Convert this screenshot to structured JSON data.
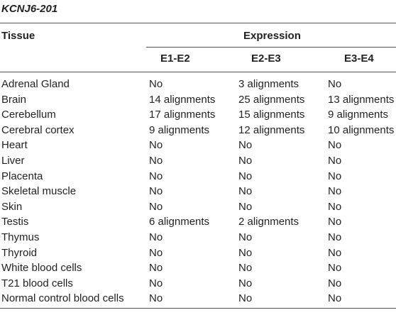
{
  "table": {
    "title": "KCNJ6-201",
    "header_tissue": "Tissue",
    "header_expression": "Expression",
    "subheaders": [
      "E1-E2",
      "E2-E3",
      "E3-E4"
    ],
    "rows": [
      {
        "tissue": "Adrenal Gland",
        "e1e2": "No",
        "e2e3": "3 alignments",
        "e3e4": "No"
      },
      {
        "tissue": "Brain",
        "e1e2": "14 alignments",
        "e2e3": "25 alignments",
        "e3e4": "13 alignments"
      },
      {
        "tissue": "Cerebellum",
        "e1e2": "17 alignments",
        "e2e3": "15 alignments",
        "e3e4": "9 alignments"
      },
      {
        "tissue": "Cerebral cortex",
        "e1e2": "9 alignments",
        "e2e3": "12 alignments",
        "e3e4": "10 alignments"
      },
      {
        "tissue": "Heart",
        "e1e2": "No",
        "e2e3": "No",
        "e3e4": "No"
      },
      {
        "tissue": "Liver",
        "e1e2": "No",
        "e2e3": "No",
        "e3e4": "No"
      },
      {
        "tissue": "Placenta",
        "e1e2": "No",
        "e2e3": "No",
        "e3e4": "No"
      },
      {
        "tissue": "Skeletal muscle",
        "e1e2": "No",
        "e2e3": "No",
        "e3e4": "No"
      },
      {
        "tissue": "Skin",
        "e1e2": "No",
        "e2e3": "No",
        "e3e4": "No"
      },
      {
        "tissue": "Testis",
        "e1e2": "6 alignments",
        "e2e3": "2 alignments",
        "e3e4": "No"
      },
      {
        "tissue": "Thymus",
        "e1e2": "No",
        "e2e3": "No",
        "e3e4": "No"
      },
      {
        "tissue": "Thyroid",
        "e1e2": "No",
        "e2e3": "No",
        "e3e4": "No"
      },
      {
        "tissue": "White blood cells",
        "e1e2": "No",
        "e2e3": "No",
        "e3e4": "No"
      },
      {
        "tissue": "T21 blood cells",
        "e1e2": "No",
        "e2e3": "No",
        "e3e4": "No"
      },
      {
        "tissue": "Normal control blood cells",
        "e1e2": "No",
        "e2e3": "No",
        "e3e4": "No"
      }
    ]
  }
}
